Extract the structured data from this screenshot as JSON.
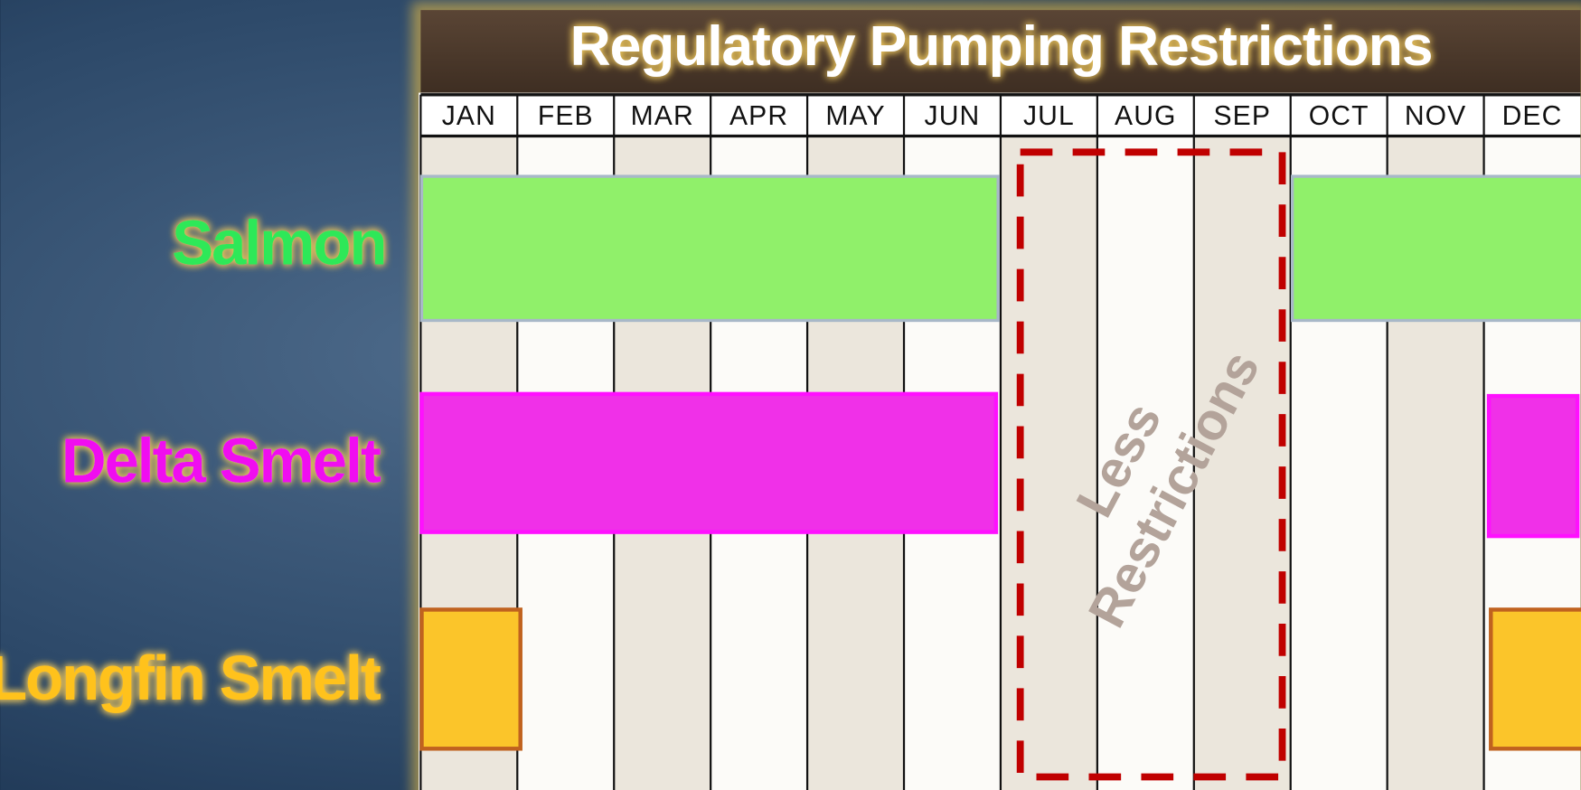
{
  "title": "Regulatory Pumping Restrictions",
  "months": [
    "JAN",
    "FEB",
    "MAR",
    "APR",
    "MAY",
    "JUN",
    "JUL",
    "AUG",
    "SEP",
    "OCT",
    "NOV",
    "DEC"
  ],
  "rows": [
    {
      "label": "Salmon"
    },
    {
      "label": "Delta Smelt"
    },
    {
      "label": "Longfin Smelt"
    }
  ],
  "annotation": {
    "lines": [
      "Less",
      "Restrictions"
    ]
  }
}
